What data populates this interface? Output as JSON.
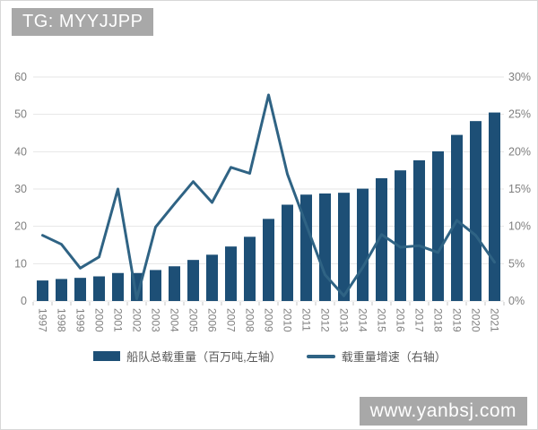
{
  "watermarks": {
    "top_left": "TG: MYYJJPP",
    "bottom_right": "www.yanbsj.com"
  },
  "chart_data": {
    "type": "bar",
    "subtype": "bar-line-dual-axis",
    "title": "",
    "categories": [
      "1997",
      "1998",
      "1999",
      "2000",
      "2001",
      "2002",
      "2003",
      "2004",
      "2005",
      "2006",
      "2007",
      "2008",
      "2009",
      "2010",
      "2011",
      "2012",
      "2013",
      "2014",
      "2015",
      "2016",
      "2017",
      "2018",
      "2019",
      "2020",
      "2021"
    ],
    "series": [
      {
        "name": "船队总载重量（百万吨,左轴）",
        "type": "bar",
        "axis": "left",
        "color": "#1d4f76",
        "values": [
          5.5,
          5.9,
          6.2,
          6.6,
          7.5,
          7.5,
          8.3,
          9.3,
          11.0,
          12.4,
          14.6,
          17.2,
          22.0,
          25.8,
          28.5,
          28.8,
          29.0,
          30.1,
          32.9,
          35.0,
          37.7,
          40.1,
          44.5,
          48.2,
          50.5
        ]
      },
      {
        "name": "载重量增速（右轴）",
        "type": "line",
        "axis": "right",
        "color": "#2f6384",
        "values": [
          8.8,
          7.6,
          4.4,
          5.9,
          15.0,
          0.3,
          9.9,
          13.0,
          16.0,
          13.2,
          17.9,
          17.1,
          27.6,
          17.0,
          10.2,
          3.5,
          0.7,
          4.5,
          8.9,
          7.2,
          7.4,
          6.5,
          10.8,
          8.8,
          5.2
        ]
      }
    ],
    "left_axis": {
      "min": 0,
      "max": 60,
      "ticks": [
        "0",
        "10",
        "20",
        "30",
        "40",
        "50",
        "60"
      ]
    },
    "right_axis": {
      "min": 0,
      "max": 30,
      "ticks": [
        "0%",
        "5%",
        "10%",
        "15%",
        "20%",
        "25%",
        "30%"
      ]
    },
    "grid": true,
    "legend_position": "bottom"
  },
  "colors": {
    "badge_bg": "#a8a8a8",
    "badge_text": "#ffffff",
    "axis_text": "#7f7f7f",
    "gridline": "#e6e6e6",
    "tick_mark": "#c4c4c4",
    "legend_text": "#595959"
  }
}
